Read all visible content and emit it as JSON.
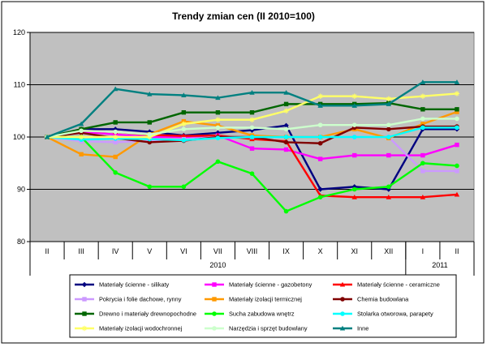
{
  "chart_data": {
    "type": "line",
    "title": "Trendy zmian cen (II 2010=100)",
    "xlabel": "",
    "ylabel": "",
    "ylim": [
      80,
      120
    ],
    "yticks": [
      80,
      90,
      100,
      110,
      120
    ],
    "grid": true,
    "legend_position": "bottom",
    "months": [
      "II",
      "III",
      "IV",
      "V",
      "VI",
      "VII",
      "VIII",
      "IX",
      "X",
      "XI",
      "XII",
      "I",
      "II"
    ],
    "year_groups": [
      {
        "label": "2010",
        "start": 0,
        "end": 10
      },
      {
        "label": "2011",
        "start": 11,
        "end": 12
      }
    ],
    "colors": {
      "plot_background": "#c0c0c0",
      "grid": "#000000"
    },
    "series": [
      {
        "name": "Materiały ścienne - silikaty",
        "color": "#000080",
        "marker": "diamond",
        "values": [
          100,
          101.5,
          101.5,
          101,
          100.3,
          100.8,
          101.3,
          102.2,
          90.0,
          90.5,
          90.0,
          101.5,
          101.5
        ]
      },
      {
        "name": "Materiały ścienne - gazobetony",
        "color": "#ff00ff",
        "marker": "square",
        "values": [
          100,
          101,
          100.5,
          100,
          100,
          100.3,
          97.8,
          97.6,
          95.8,
          96.5,
          96.5,
          96.5,
          98.5
        ]
      },
      {
        "name": "Materiały ścienne - ceramiczne",
        "color": "#ff0000",
        "marker": "triangle",
        "values": [
          100,
          101.2,
          101,
          100.4,
          100.2,
          100.3,
          99.6,
          99.2,
          88.8,
          88.5,
          88.5,
          88.5,
          89.0
        ]
      },
      {
        "name": "Pokrycia i folie dachowe, rynny",
        "color": "#cc99ff",
        "marker": "square",
        "values": [
          100,
          99.2,
          99.0,
          99.3,
          99.6,
          100.0,
          100.0,
          100.0,
          100.0,
          100.0,
          100.0,
          93.5,
          93.5
        ]
      },
      {
        "name": "Materiały izolacji termicznej",
        "color": "#ff9900",
        "marker": "square",
        "values": [
          100,
          96.7,
          96.2,
          100.5,
          103.0,
          102.2,
          100.3,
          100.0,
          100.0,
          101.5,
          99.8,
          102.5,
          104.8
        ]
      },
      {
        "name": "Chemia budowlana",
        "color": "#800000",
        "marker": "circle",
        "values": [
          100,
          100.8,
          99.8,
          99.0,
          99.3,
          100.0,
          100.0,
          99.0,
          98.8,
          101.8,
          101.5,
          102.0,
          102.0
        ]
      },
      {
        "name": "Drewno i materiały drewnopochodne",
        "color": "#006600",
        "marker": "square",
        "values": [
          100,
          101.5,
          102.8,
          102.8,
          104.7,
          104.7,
          104.7,
          106.3,
          106.3,
          106.3,
          106.5,
          105.3,
          105.3
        ]
      },
      {
        "name": "Sucha zabudowa wnętrz",
        "color": "#00ff00",
        "marker": "circle",
        "values": [
          100,
          100.0,
          93.2,
          90.5,
          90.5,
          95.3,
          93.0,
          85.8,
          88.5,
          90.0,
          90.5,
          95.0,
          94.5
        ]
      },
      {
        "name": "Stolarka otworowa, parapety",
        "color": "#00ffff",
        "marker": "circle",
        "values": [
          100,
          99.5,
          99.7,
          99.6,
          99.4,
          99.8,
          100.0,
          100.0,
          100.0,
          100.0,
          100.0,
          101.8,
          101.8
        ]
      },
      {
        "name": "Materiały izolacji wodochronnej",
        "color": "#ffff66",
        "marker": "star",
        "values": [
          100,
          100.0,
          100.0,
          100.0,
          102.5,
          103.3,
          103.3,
          105.0,
          107.8,
          107.8,
          107.3,
          107.8,
          108.3
        ]
      },
      {
        "name": "Narzędzia i sprzęt budowlany",
        "color": "#ccffcc",
        "marker": "circle",
        "values": [
          100,
          101.2,
          101.0,
          100.5,
          101.5,
          101.8,
          101.8,
          101.5,
          102.3,
          102.3,
          102.3,
          103.5,
          103.5
        ]
      },
      {
        "name": "Inne",
        "color": "#008080",
        "marker": "triangle",
        "values": [
          100,
          102.5,
          109.2,
          108.2,
          108.0,
          107.5,
          108.5,
          108.5,
          106.0,
          106.0,
          106.3,
          110.5,
          110.5
        ]
      }
    ]
  }
}
